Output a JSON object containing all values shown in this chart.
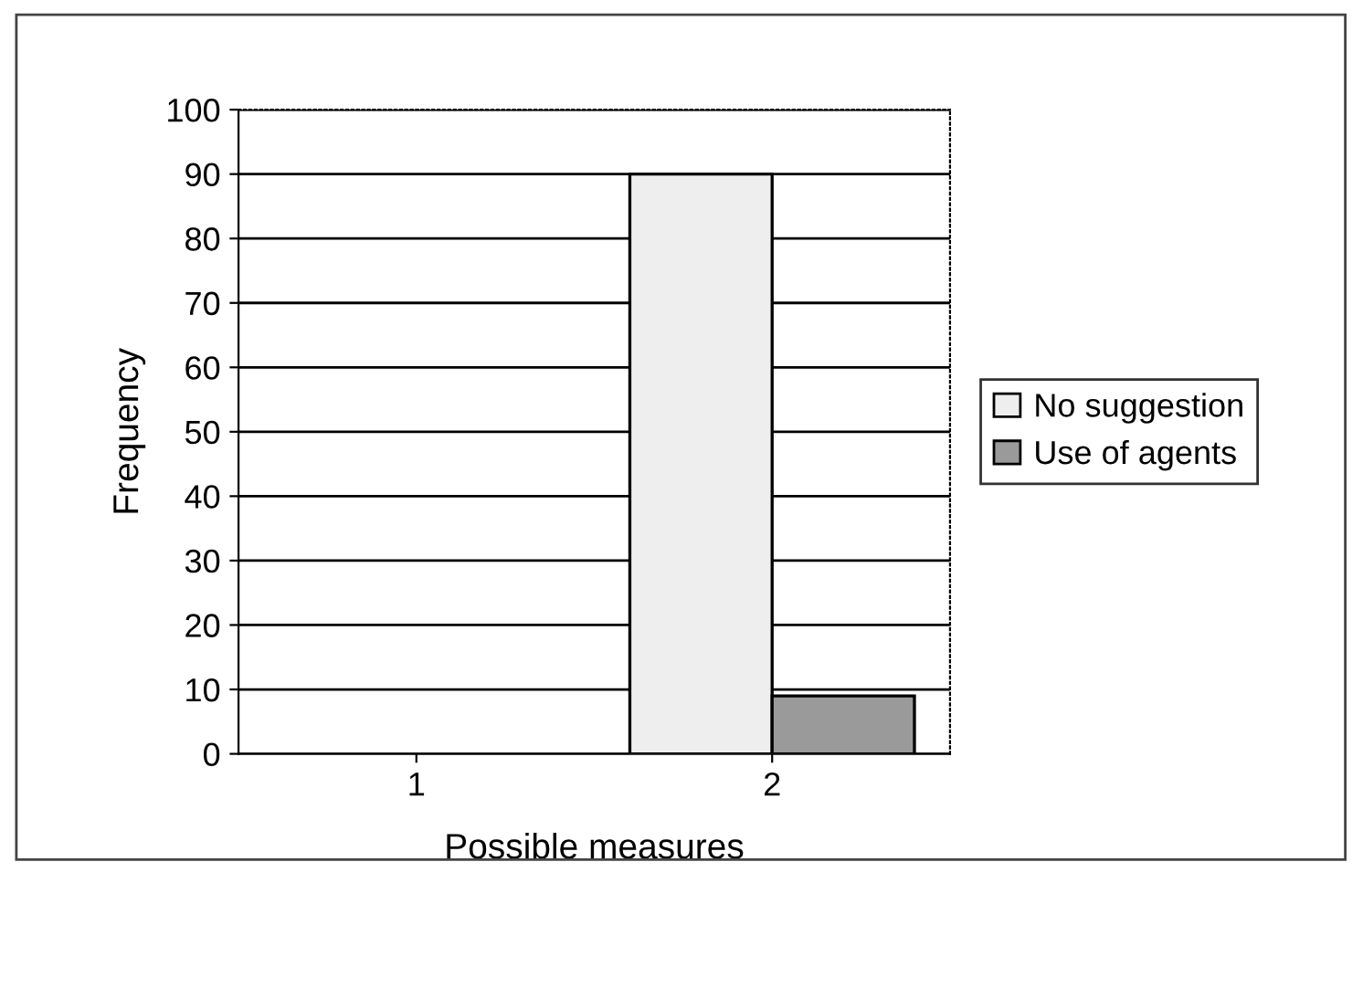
{
  "chart_data": {
    "type": "bar",
    "xlabel": "Possible measures",
    "ylabel": "Frequency",
    "categories": [
      "1",
      "2"
    ],
    "series": [
      {
        "name": "No suggestion",
        "color": "#eeeeee",
        "values": [
          0,
          90
        ]
      },
      {
        "name": "Use of agents",
        "color": "#9a9a9a",
        "values": [
          0,
          9
        ]
      }
    ],
    "ylim": [
      0,
      100
    ],
    "yticks": [
      0,
      10,
      20,
      30,
      40,
      50,
      60,
      70,
      80,
      90,
      100
    ],
    "grid": "y",
    "legend": "right"
  }
}
